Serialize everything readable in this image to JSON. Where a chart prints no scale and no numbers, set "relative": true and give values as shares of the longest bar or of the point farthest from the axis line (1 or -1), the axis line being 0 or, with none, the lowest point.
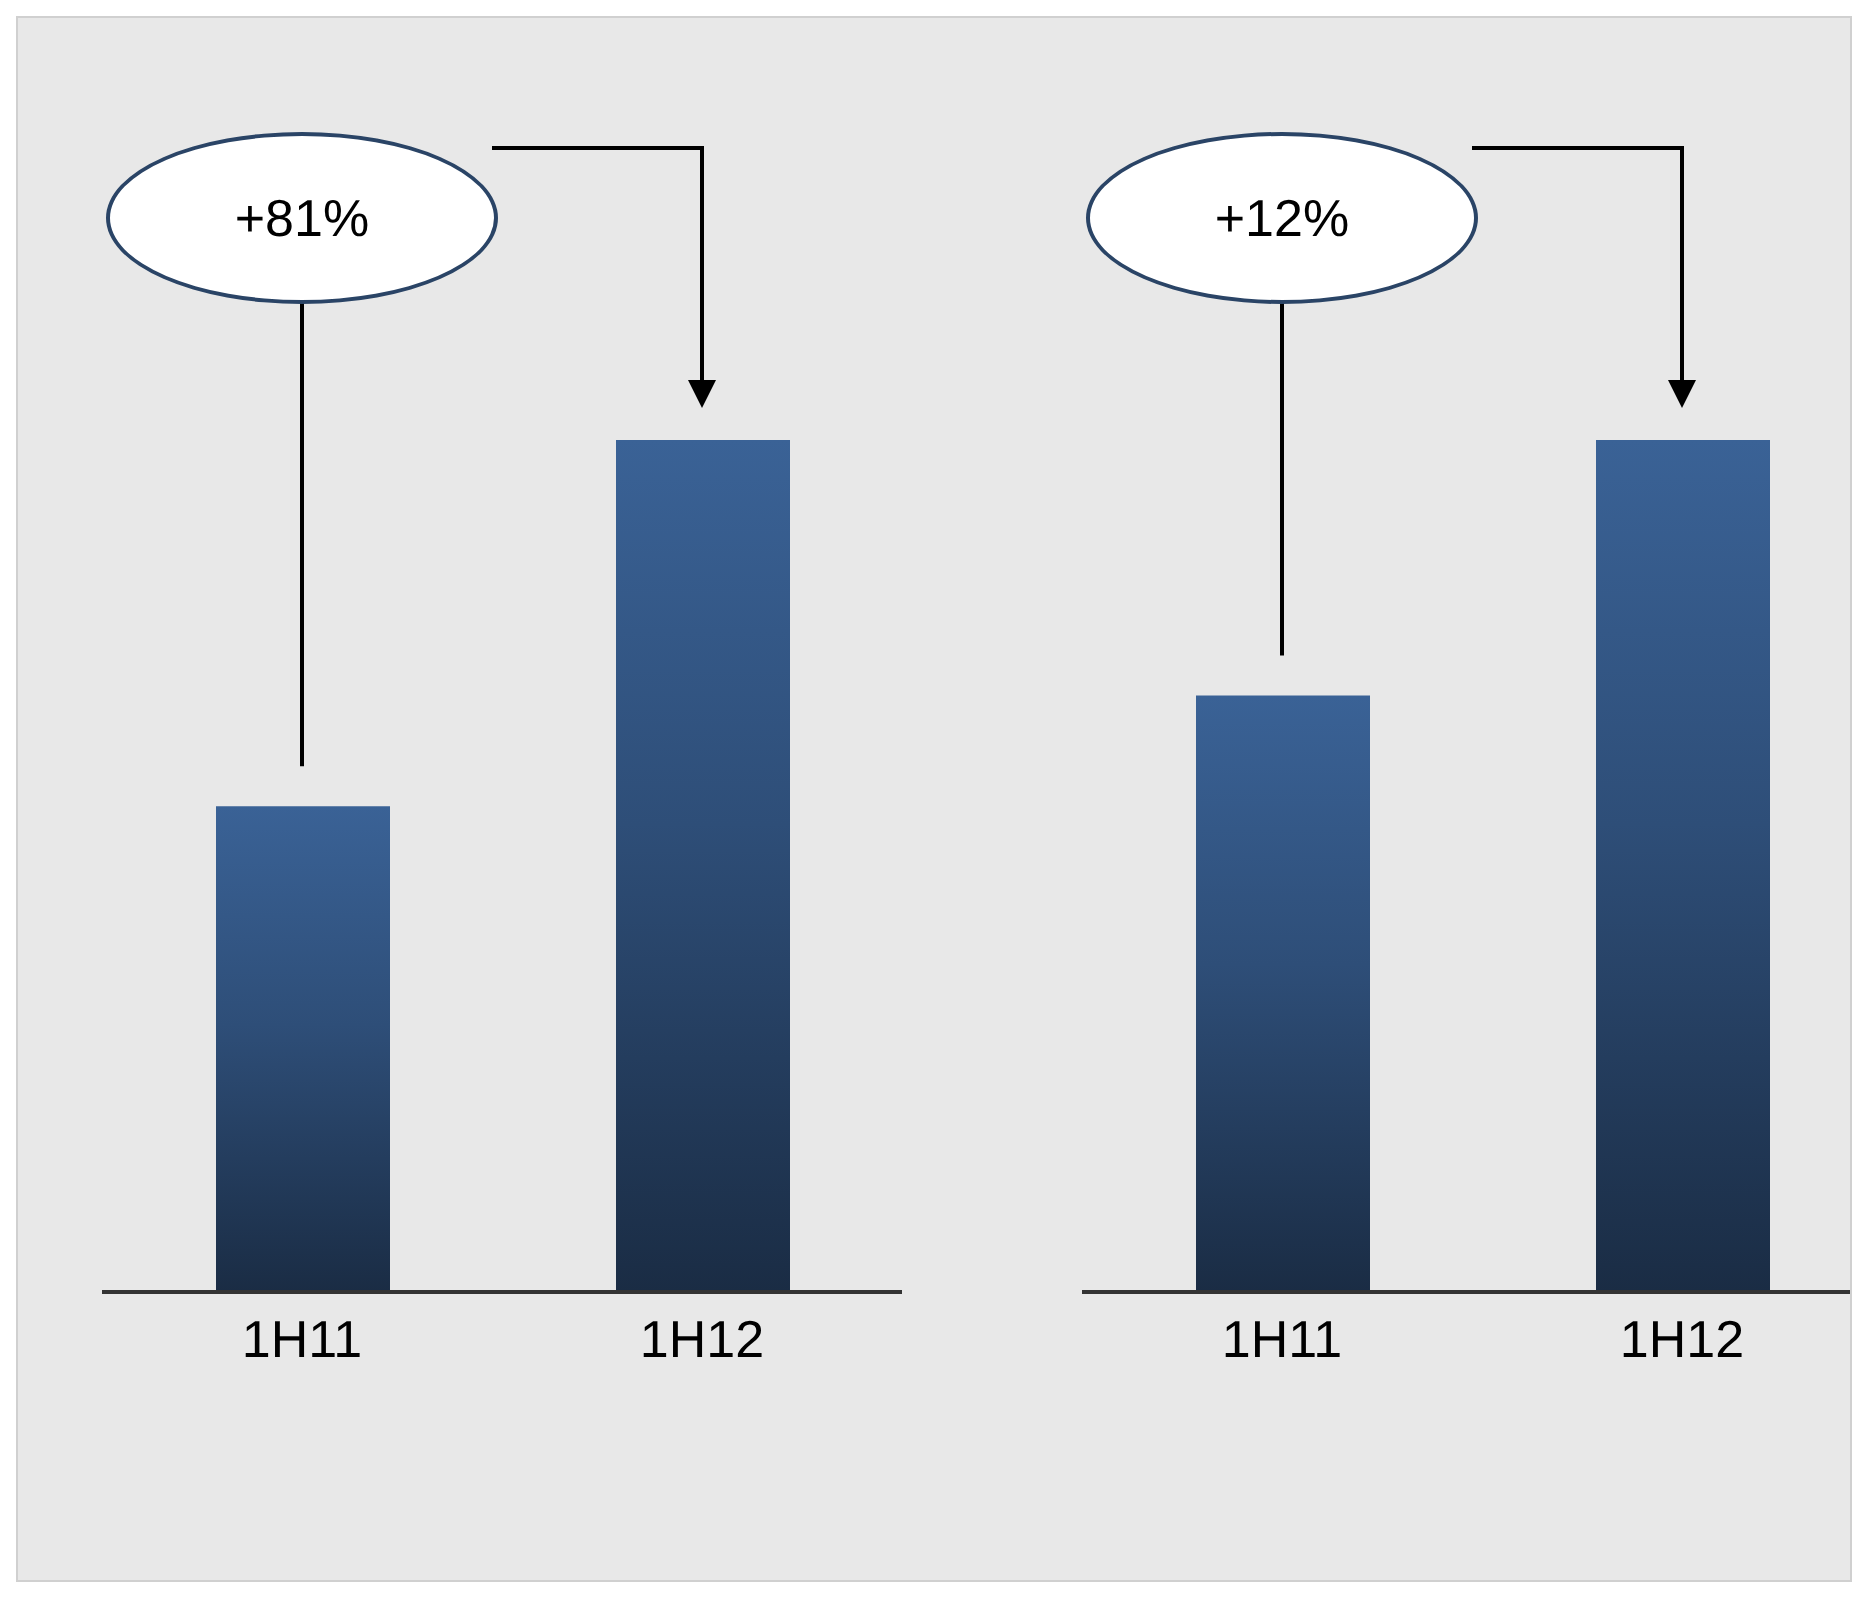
{
  "chart_data": [
    {
      "type": "bar",
      "categories": [
        "1H11",
        "1H12"
      ],
      "values": [
        0.57,
        1
      ],
      "relative": true,
      "color": "#3a6296",
      "annotations": [
        "+81%"
      ]
    },
    {
      "type": "bar",
      "categories": [
        "1H11",
        "1H12"
      ],
      "values": [
        0.7,
        1
      ],
      "relative": true,
      "color": "#3a6296",
      "annotations": [
        "+12%"
      ]
    }
  ]
}
